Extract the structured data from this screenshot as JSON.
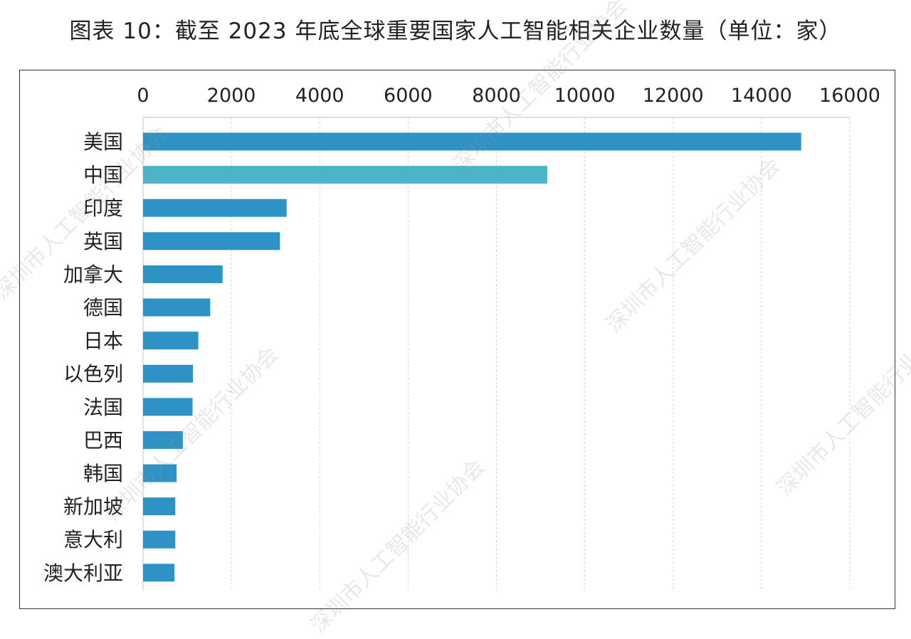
{
  "title": "图表 10：截至 2023 年底全球重要国家人工智能相关企业数量（单位：家）",
  "watermark": "深圳市人工智能行业协会",
  "colors": {
    "primary": "#2e93c4",
    "highlight": "#4fb3c8",
    "grid": "#d4d4d4",
    "axis": "#cfcfcf",
    "text": "#222222"
  },
  "chart_data": {
    "type": "bar",
    "orientation": "horizontal",
    "x_axis_position": "top",
    "xlim": [
      0,
      16000
    ],
    "xticks": [
      0,
      2000,
      4000,
      6000,
      8000,
      10000,
      12000,
      14000,
      16000
    ],
    "grid": true,
    "categories": [
      "美国",
      "中国",
      "印度",
      "英国",
      "加拿大",
      "德国",
      "日本",
      "以色列",
      "法国",
      "巴西",
      "韩国",
      "新加坡",
      "意大利",
      "澳大利亚"
    ],
    "values": [
      14900,
      9150,
      3250,
      3100,
      1800,
      1520,
      1250,
      1130,
      1120,
      900,
      760,
      730,
      730,
      710
    ],
    "highlight_category": "中国"
  }
}
